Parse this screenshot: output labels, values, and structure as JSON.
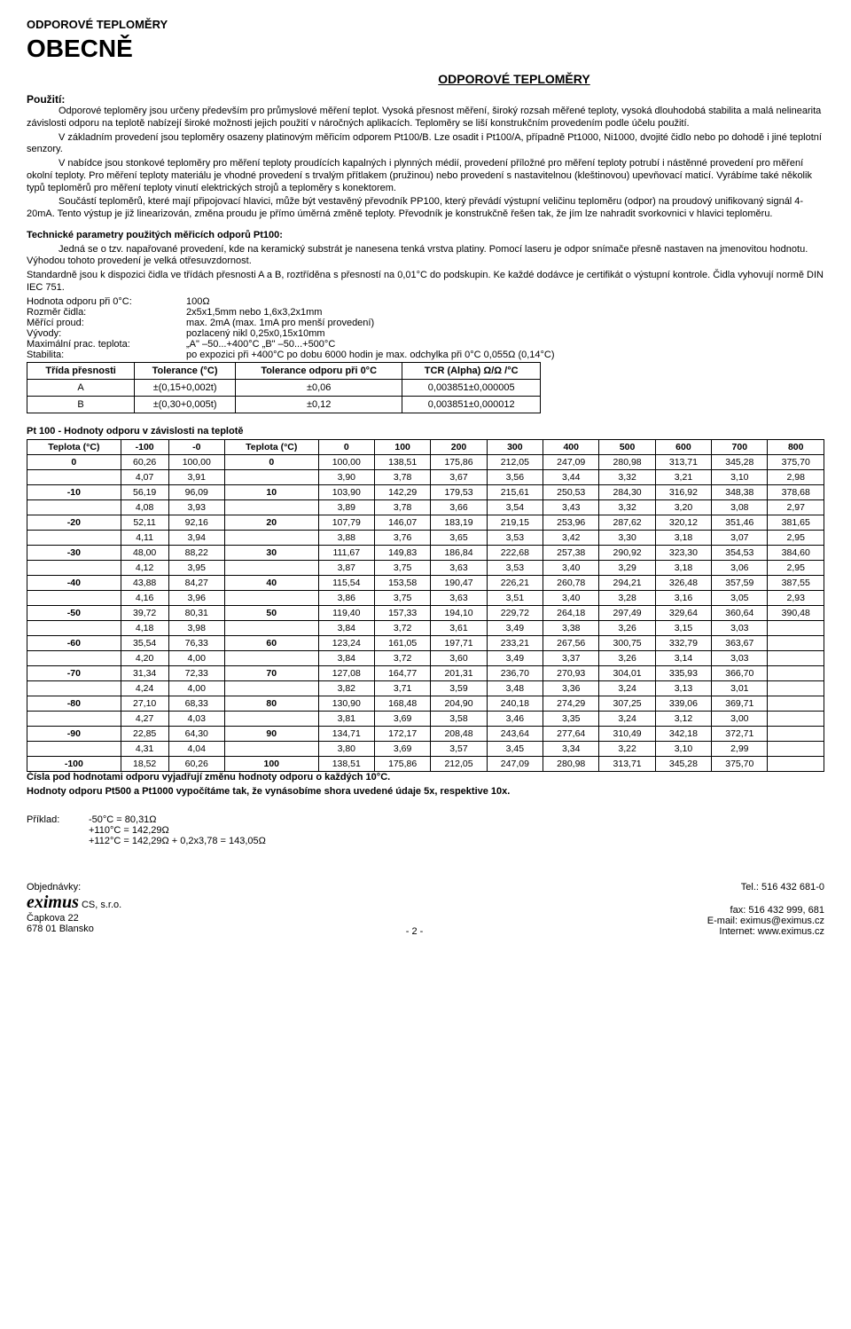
{
  "page_header": "ODPOROVÉ TEPLOMĚRY",
  "main_title": "OBECNĚ",
  "centered_title": "ODPOROVÉ TEPLOMĚRY",
  "usage_label": "Použití:",
  "para1": "Odporové teploměry jsou určeny především pro průmyslové měření teplot. Vysoká přesnost měření, široký rozsah měřené teploty, vysoká dlouhodobá stabilita a malá nelinearita závislosti odporu na teplotě nabízejí široké možnosti jejich použití v náročných aplikacích. Teploměry se liší konstrukčním provedením podle účelu použití.",
  "para2": "V základním provedení jsou teploměry osazeny platinovým měřicím odporem Pt100/B. Lze osadit i Pt100/A, případně Pt1000, Ni1000, dvojité čidlo nebo po dohodě i jiné teplotní senzory.",
  "para3": "V nabídce jsou stonkové teploměry pro měření teploty proudících kapalných i plynných médií, provedení příložné pro měření teploty potrubí i nástěnné provedení pro měření okolní teploty. Pro měření teploty materiálu je vhodné provedení s trvalým přítlakem (pružinou) nebo provedení s nastavitelnou (kleštinovou) upevňovací maticí. Vyrábíme také několik typů teploměrů pro měření teploty vinutí elektrických strojů a teploměry s konektorem.",
  "para4": "Součástí teploměrů, které mají připojovací hlavici, může být vestavěný převodník PP100, který převádí výstupní veličinu teploměru (odpor) na proudový unifikovaný signál 4-20mA. Tento výstup je již linearizován, změna proudu je přímo úměrná změně teploty. Převodník je konstrukčně řešen tak, že jím lze nahradit svorkovnici v hlavici teploměru.",
  "tech_params_title": "Technické parametry použitých měřicích odporů Pt100:",
  "tech_para1": "Jedná se o tzv. napařované provedení, kde na keramický substrát je nanesena tenká vrstva platiny. Pomocí laseru je odpor snímače přesně nastaven na jmenovitou hodnotu. Výhodou tohoto provedení je velká otřesuvzdornost.",
  "tech_para2": "Standardně jsou k dispozici čidla ve třídách přesnosti A a B, roztříděna s přesností na 0,01°C do podskupin. Ke každé dodávce je certifikát o výstupní kontrole. Čidla vyhovují normě DIN IEC 751.",
  "params": [
    {
      "label": "Hodnota odporu při 0°C:",
      "value": "100Ω"
    },
    {
      "label": "Rozměr čidla:",
      "value": "2x5x1,5mm nebo 1,6x3,2x1mm"
    },
    {
      "label": "Měřící proud:",
      "value": "max. 2mA (max. 1mA pro menší provedení)"
    },
    {
      "label": "Vývody:",
      "value": "pozlacený nikl 0,25x0,15x10mm"
    },
    {
      "label": "Maximální prac. teplota:",
      "value": "„A\" –50...+400°C „B\" –50...+500°C"
    },
    {
      "label": "Stabilita:",
      "value": "po expozici při +400°C po dobu 6000 hodin je max. odchylka při 0°C 0,055Ω (0,14°C)"
    }
  ],
  "tolerance_table": {
    "headers": [
      "Třída přesnosti",
      "Tolerance (°C)",
      "Tolerance odporu při 0°C",
      "TCR (Alpha) Ω/Ω /°C"
    ],
    "rows": [
      [
        "A",
        "±(0,15+0,002t)",
        "±0,06",
        "0,003851±0,000005"
      ],
      [
        "B",
        "±(0,30+0,005t)",
        "±0,12",
        "0,003851±0,000012"
      ]
    ]
  },
  "pt100_title": "Pt 100 - Hodnoty odporu v závislosti na teplotě",
  "pt100_table": {
    "header1": [
      "Teplota (°C)",
      "-100",
      "-0",
      "Teplota (°C)",
      "0",
      "100",
      "200",
      "300",
      "400",
      "500",
      "600",
      "700",
      "800"
    ],
    "rows": [
      [
        "0",
        "60,26",
        "100,00",
        "0",
        "100,00",
        "138,51",
        "175,86",
        "212,05",
        "247,09",
        "280,98",
        "313,71",
        "345,28",
        "375,70"
      ],
      [
        "",
        "4,07",
        "3,91",
        "",
        "3,90",
        "3,78",
        "3,67",
        "3,56",
        "3,44",
        "3,32",
        "3,21",
        "3,10",
        "2,98"
      ],
      [
        "-10",
        "56,19",
        "96,09",
        "10",
        "103,90",
        "142,29",
        "179,53",
        "215,61",
        "250,53",
        "284,30",
        "316,92",
        "348,38",
        "378,68"
      ],
      [
        "",
        "4,08",
        "3,93",
        "",
        "3,89",
        "3,78",
        "3,66",
        "3,54",
        "3,43",
        "3,32",
        "3,20",
        "3,08",
        "2,97"
      ],
      [
        "-20",
        "52,11",
        "92,16",
        "20",
        "107,79",
        "146,07",
        "183,19",
        "219,15",
        "253,96",
        "287,62",
        "320,12",
        "351,46",
        "381,65"
      ],
      [
        "",
        "4,11",
        "3,94",
        "",
        "3,88",
        "3,76",
        "3,65",
        "3,53",
        "3,42",
        "3,30",
        "3,18",
        "3,07",
        "2,95"
      ],
      [
        "-30",
        "48,00",
        "88,22",
        "30",
        "111,67",
        "149,83",
        "186,84",
        "222,68",
        "257,38",
        "290,92",
        "323,30",
        "354,53",
        "384,60"
      ],
      [
        "",
        "4,12",
        "3,95",
        "",
        "3,87",
        "3,75",
        "3,63",
        "3,53",
        "3,40",
        "3,29",
        "3,18",
        "3,06",
        "2,95"
      ],
      [
        "-40",
        "43,88",
        "84,27",
        "40",
        "115,54",
        "153,58",
        "190,47",
        "226,21",
        "260,78",
        "294,21",
        "326,48",
        "357,59",
        "387,55"
      ],
      [
        "",
        "4,16",
        "3,96",
        "",
        "3,86",
        "3,75",
        "3,63",
        "3,51",
        "3,40",
        "3,28",
        "3,16",
        "3,05",
        "2,93"
      ],
      [
        "-50",
        "39,72",
        "80,31",
        "50",
        "119,40",
        "157,33",
        "194,10",
        "229,72",
        "264,18",
        "297,49",
        "329,64",
        "360,64",
        "390,48"
      ],
      [
        "",
        "4,18",
        "3,98",
        "",
        "3,84",
        "3,72",
        "3,61",
        "3,49",
        "3,38",
        "3,26",
        "3,15",
        "3,03",
        ""
      ],
      [
        "-60",
        "35,54",
        "76,33",
        "60",
        "123,24",
        "161,05",
        "197,71",
        "233,21",
        "267,56",
        "300,75",
        "332,79",
        "363,67",
        ""
      ],
      [
        "",
        "4,20",
        "4,00",
        "",
        "3,84",
        "3,72",
        "3,60",
        "3,49",
        "3,37",
        "3,26",
        "3,14",
        "3,03",
        ""
      ],
      [
        "-70",
        "31,34",
        "72,33",
        "70",
        "127,08",
        "164,77",
        "201,31",
        "236,70",
        "270,93",
        "304,01",
        "335,93",
        "366,70",
        ""
      ],
      [
        "",
        "4,24",
        "4,00",
        "",
        "3,82",
        "3,71",
        "3,59",
        "3,48",
        "3,36",
        "3,24",
        "3,13",
        "3,01",
        ""
      ],
      [
        "-80",
        "27,10",
        "68,33",
        "80",
        "130,90",
        "168,48",
        "204,90",
        "240,18",
        "274,29",
        "307,25",
        "339,06",
        "369,71",
        ""
      ],
      [
        "",
        "4,27",
        "4,03",
        "",
        "3,81",
        "3,69",
        "3,58",
        "3,46",
        "3,35",
        "3,24",
        "3,12",
        "3,00",
        ""
      ],
      [
        "-90",
        "22,85",
        "64,30",
        "90",
        "134,71",
        "172,17",
        "208,48",
        "243,64",
        "277,64",
        "310,49",
        "342,18",
        "372,71",
        ""
      ],
      [
        "",
        "4,31",
        "4,04",
        "",
        "3,80",
        "3,69",
        "3,57",
        "3,45",
        "3,34",
        "3,22",
        "3,10",
        "2,99",
        ""
      ],
      [
        "-100",
        "18,52",
        "60,26",
        "100",
        "138,51",
        "175,86",
        "212,05",
        "247,09",
        "280,98",
        "313,71",
        "345,28",
        "375,70",
        ""
      ]
    ]
  },
  "note1": "Čísla pod hodnotami odporu vyjadřují změnu hodnoty odporu o každých 10°C.",
  "note2": "Hodnoty odporu Pt500 a Pt1000 vypočítáme tak, že vynásobíme shora uvedené údaje 5x, respektive 10x.",
  "example_label": "Příklad:",
  "example_lines": [
    "-50°C = 80,31Ω",
    "+110°C = 142,29Ω",
    "+112°C = 142,29Ω + 0,2x3,78 = 143,05Ω"
  ],
  "footer": {
    "left_label": "Objednávky:",
    "company_logo": "eximus",
    "company_suffix": "CS, s.r.o.",
    "addr1": "Čapkova 22",
    "addr2": "678 01  Blansko",
    "page_num": "- 2 -",
    "tel": "Tel.: 516 432 681-0",
    "fax": "fax: 516 432 999, 681",
    "email": "E-mail: eximus@eximus.cz",
    "internet": "Internet: www.eximus.cz"
  }
}
